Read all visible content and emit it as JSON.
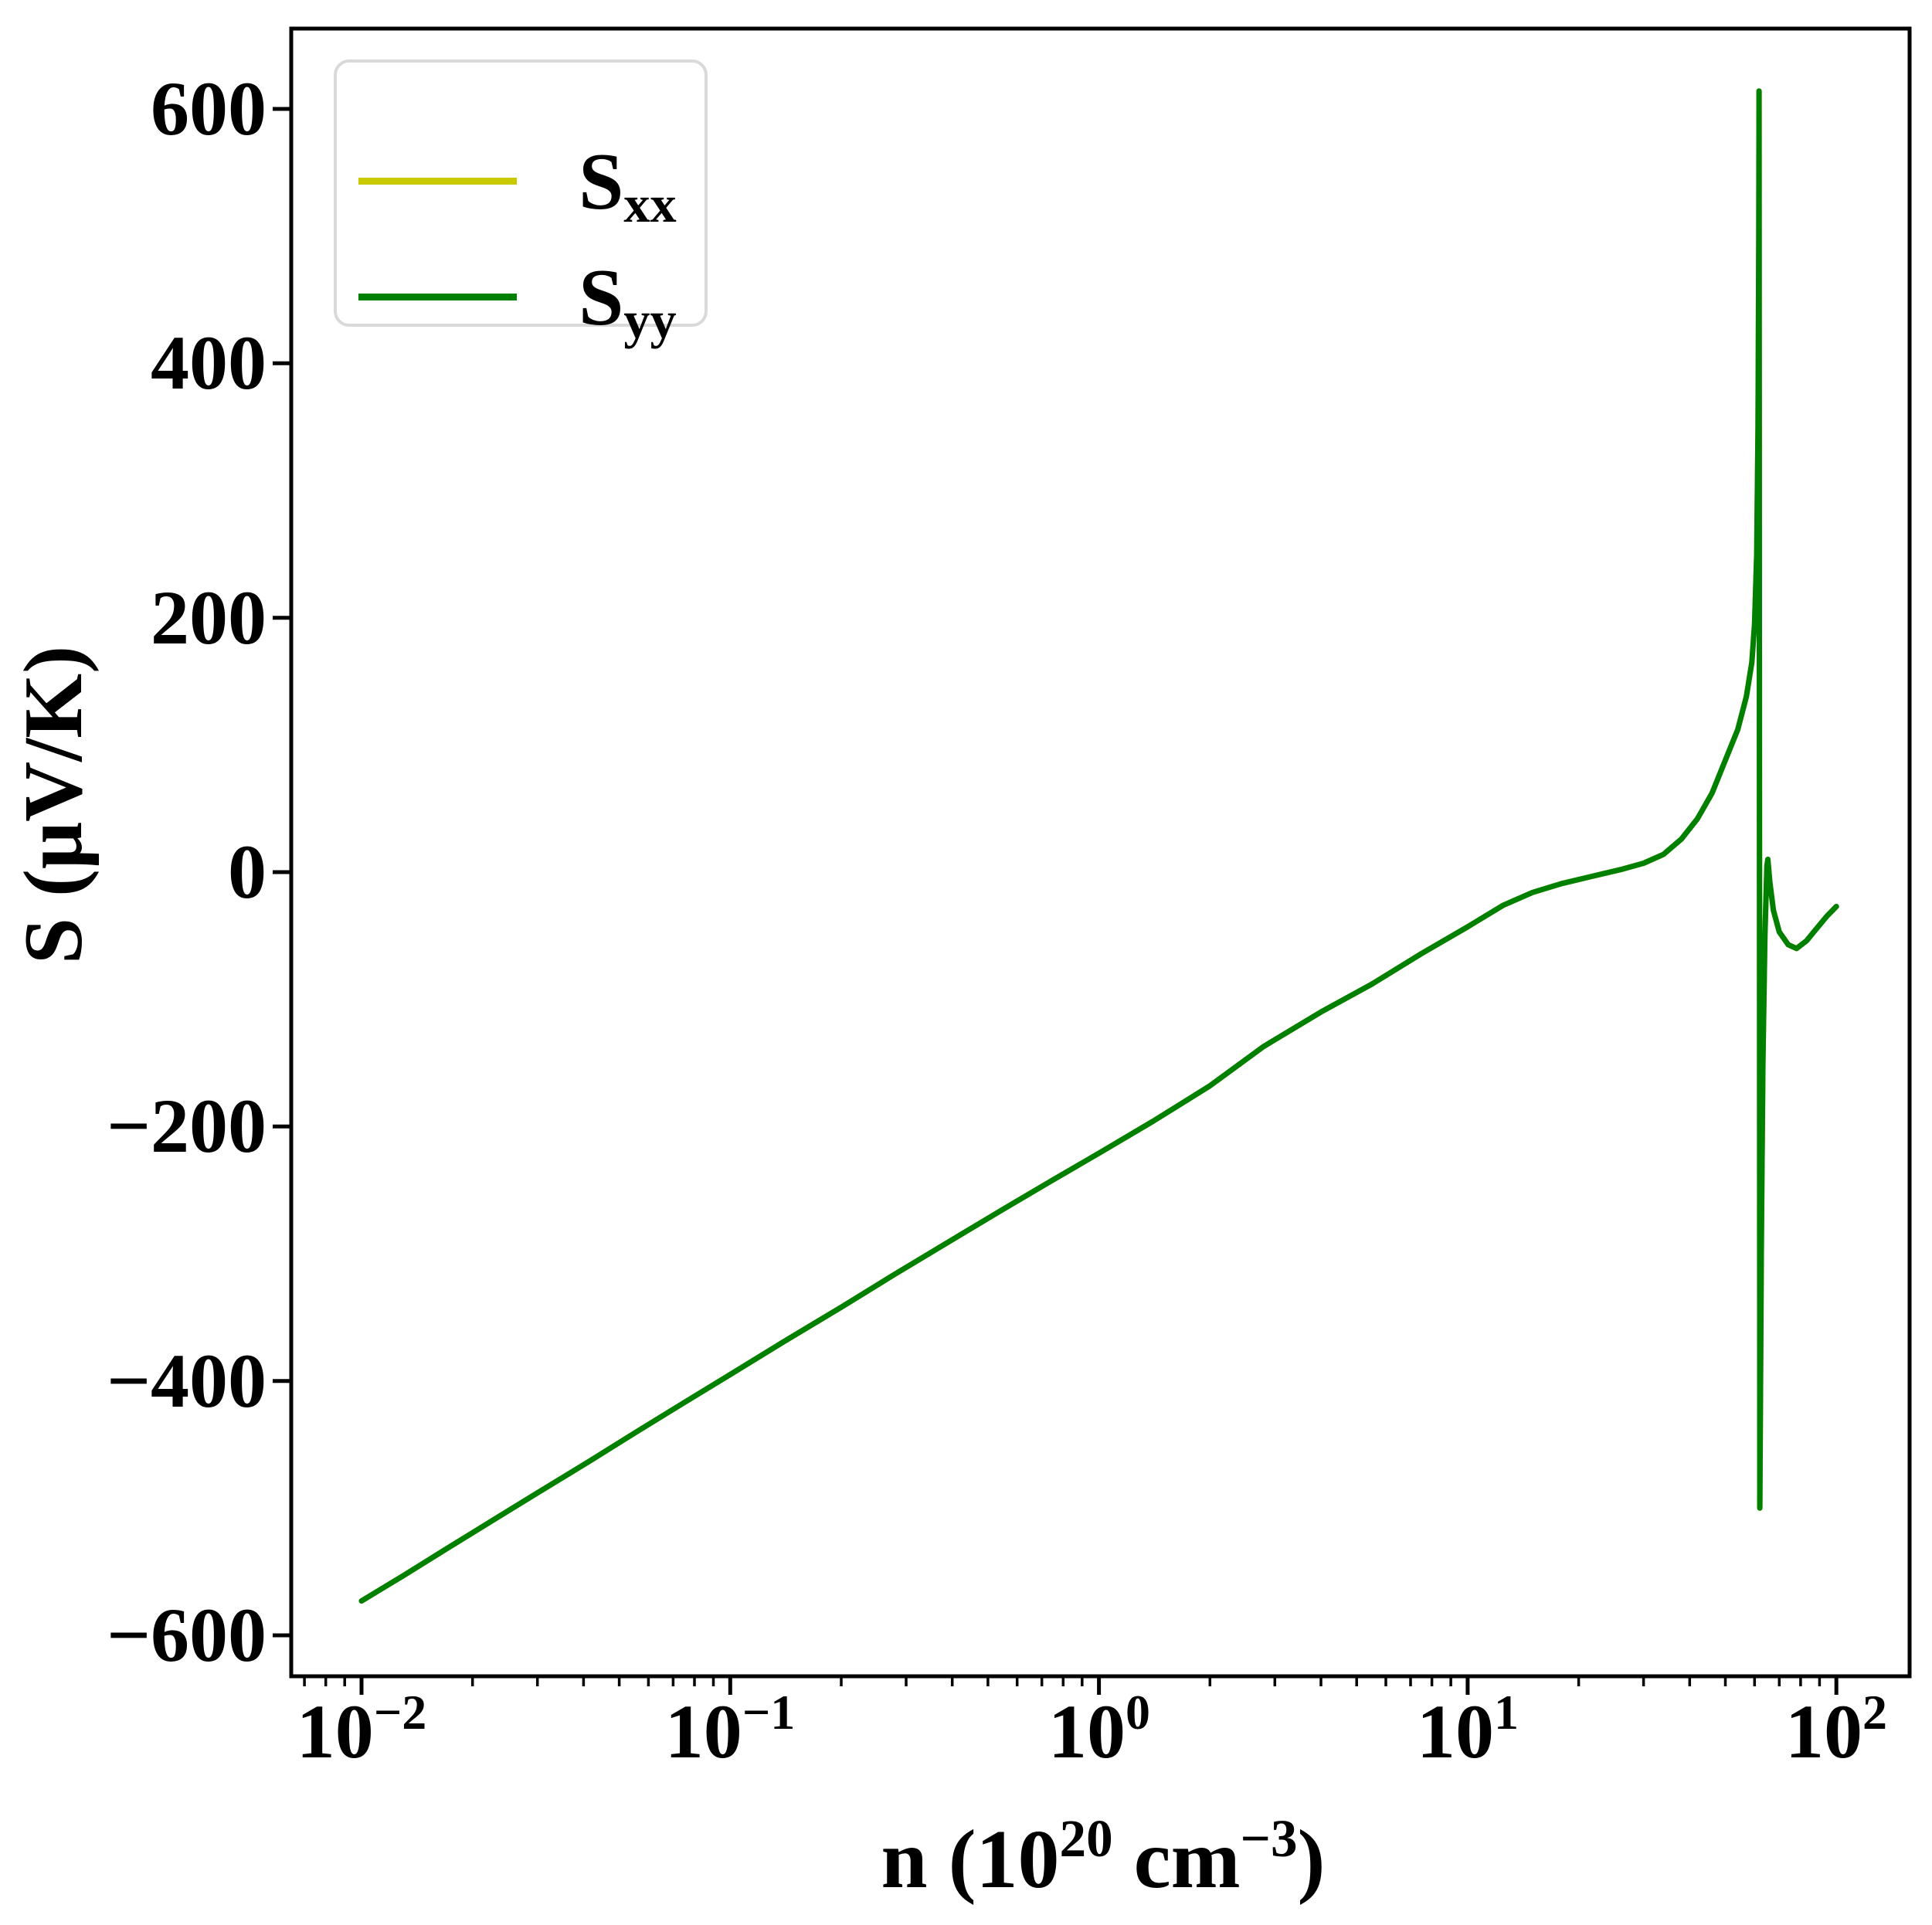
{
  "chart_data": {
    "type": "line",
    "title": "",
    "xlabel_plain": "n (10^20 cm^-3)",
    "xlabel_parts": {
      "p1": "n (10",
      "s1": "20",
      "p2": " cm",
      "s2": "−3",
      "p3": ")"
    },
    "ylabel": "S (μV/K)",
    "x_scale": "log",
    "grid": false,
    "xlim": [
      0.00645,
      158
    ],
    "ylim": [
      -632,
      663
    ],
    "x_tick_base": "10",
    "x_ticks": [
      {
        "value": 0.01,
        "exp_label": "−2"
      },
      {
        "value": 0.1,
        "exp_label": "−1"
      },
      {
        "value": 1,
        "exp_label": "0"
      },
      {
        "value": 10,
        "exp_label": "1"
      },
      {
        "value": 100,
        "exp_label": "2"
      }
    ],
    "y_ticks": [
      {
        "value": 600,
        "label": "600"
      },
      {
        "value": 400,
        "label": "400"
      },
      {
        "value": 200,
        "label": "200"
      },
      {
        "value": 0,
        "label": "0"
      },
      {
        "value": -200,
        "label": "−200"
      },
      {
        "value": -400,
        "label": "−400"
      },
      {
        "value": -600,
        "label": "−600"
      }
    ],
    "legend": {
      "position": "upper-left",
      "entries": [
        {
          "label_main": "S",
          "label_sub": "xx",
          "color": "#c9c900"
        },
        {
          "label_main": "S",
          "label_sub": "yy",
          "color": "#008000"
        }
      ]
    },
    "series": [
      {
        "name": "Sxx",
        "color": "#c9c900",
        "points": [
          [
            0.01,
            -573
          ],
          [
            0.013,
            -553
          ],
          [
            0.017,
            -532
          ],
          [
            0.022,
            -512
          ],
          [
            0.03,
            -488
          ],
          [
            0.04,
            -466
          ],
          [
            0.055,
            -441
          ],
          [
            0.075,
            -417
          ],
          [
            0.1,
            -395
          ],
          [
            0.14,
            -369
          ],
          [
            0.2,
            -342
          ],
          [
            0.28,
            -316
          ],
          [
            0.4,
            -289
          ],
          [
            0.55,
            -265
          ],
          [
            0.75,
            -242
          ],
          [
            1.0,
            -221
          ],
          [
            1.4,
            -196
          ],
          [
            2.0,
            -168
          ],
          [
            2.8,
            -137
          ],
          [
            4.0,
            -110
          ],
          [
            5.5,
            -88
          ],
          [
            7.5,
            -64
          ],
          [
            10,
            -43
          ],
          [
            12.5,
            -26
          ],
          [
            15,
            -16
          ],
          [
            18,
            -9
          ],
          [
            22,
            -3
          ],
          [
            26,
            2
          ],
          [
            30,
            7
          ],
          [
            34,
            14
          ],
          [
            38,
            26
          ],
          [
            42,
            42
          ],
          [
            46,
            62
          ],
          [
            50,
            88
          ],
          [
            54,
            112
          ],
          [
            57,
            138
          ],
          [
            59,
            165
          ],
          [
            60,
            195
          ],
          [
            60.8,
            250
          ],
          [
            61.3,
            350
          ],
          [
            61.6,
            500
          ],
          [
            61.7,
            614
          ],
          [
            61.8,
            300
          ],
          [
            61.9,
            -100
          ],
          [
            62.0,
            -500
          ],
          [
            62.6,
            -290
          ],
          [
            63.2,
            -150
          ],
          [
            64,
            -50
          ],
          [
            64.8,
            5
          ],
          [
            65.2,
            10
          ],
          [
            66,
            -8
          ],
          [
            67.5,
            -30
          ],
          [
            70,
            -47
          ],
          [
            74,
            -57
          ],
          [
            78,
            -60
          ],
          [
            83,
            -54
          ],
          [
            88,
            -45
          ],
          [
            94,
            -35
          ],
          [
            100,
            -27
          ]
        ]
      },
      {
        "name": "Syy",
        "color": "#008000",
        "points": [
          [
            0.01,
            -573
          ],
          [
            0.013,
            -553
          ],
          [
            0.017,
            -532
          ],
          [
            0.022,
            -512
          ],
          [
            0.03,
            -488
          ],
          [
            0.04,
            -466
          ],
          [
            0.055,
            -441
          ],
          [
            0.075,
            -417
          ],
          [
            0.1,
            -395
          ],
          [
            0.14,
            -369
          ],
          [
            0.2,
            -342
          ],
          [
            0.28,
            -316
          ],
          [
            0.4,
            -289
          ],
          [
            0.55,
            -265
          ],
          [
            0.75,
            -242
          ],
          [
            1.0,
            -221
          ],
          [
            1.4,
            -196
          ],
          [
            2.0,
            -168
          ],
          [
            2.8,
            -137
          ],
          [
            4.0,
            -110
          ],
          [
            5.5,
            -88
          ],
          [
            7.5,
            -64
          ],
          [
            10,
            -43
          ],
          [
            12.5,
            -26
          ],
          [
            15,
            -16
          ],
          [
            18,
            -9
          ],
          [
            22,
            -3
          ],
          [
            26,
            2
          ],
          [
            30,
            7
          ],
          [
            34,
            14
          ],
          [
            38,
            26
          ],
          [
            42,
            42
          ],
          [
            46,
            62
          ],
          [
            50,
            88
          ],
          [
            54,
            112
          ],
          [
            57,
            138
          ],
          [
            59,
            165
          ],
          [
            60,
            195
          ],
          [
            60.8,
            250
          ],
          [
            61.3,
            350
          ],
          [
            61.6,
            500
          ],
          [
            61.7,
            614
          ],
          [
            61.8,
            300
          ],
          [
            61.9,
            -100
          ],
          [
            62.0,
            -500
          ],
          [
            62.6,
            -290
          ],
          [
            63.2,
            -150
          ],
          [
            64,
            -50
          ],
          [
            64.8,
            5
          ],
          [
            65.2,
            10
          ],
          [
            66,
            -8
          ],
          [
            67.5,
            -30
          ],
          [
            70,
            -47
          ],
          [
            74,
            -57
          ],
          [
            78,
            -60
          ],
          [
            83,
            -54
          ],
          [
            88,
            -45
          ],
          [
            94,
            -35
          ],
          [
            100,
            -27
          ]
        ]
      }
    ]
  }
}
